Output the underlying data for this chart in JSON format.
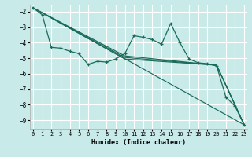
{
  "bg_color": "#c8eae8",
  "grid_color": "#ffffff",
  "line_color": "#1a6b5a",
  "xlabel": "Humidex (Indice chaleur)",
  "xlim": [
    -0.3,
    23.3
  ],
  "ylim": [
    -9.55,
    -1.55
  ],
  "yticks": [
    -9,
    -8,
    -7,
    -6,
    -5,
    -4,
    -3,
    -2
  ],
  "xticks": [
    0,
    1,
    2,
    3,
    4,
    5,
    6,
    7,
    8,
    9,
    10,
    11,
    12,
    13,
    14,
    15,
    16,
    17,
    18,
    19,
    20,
    21,
    22,
    23
  ],
  "main_x": [
    0,
    1,
    2,
    3,
    4,
    5,
    6,
    7,
    8,
    9,
    10,
    11,
    12,
    13,
    14,
    15,
    16,
    17,
    18,
    19,
    20,
    21,
    22,
    23
  ],
  "main_y": [
    -1.75,
    -2.2,
    -4.3,
    -4.35,
    -4.55,
    -4.7,
    -5.4,
    -5.2,
    -5.25,
    -5.05,
    -4.7,
    -3.55,
    -3.65,
    -3.8,
    -4.1,
    -2.75,
    -4.0,
    -5.05,
    -5.3,
    -5.35,
    -5.5,
    -7.5,
    -8.1,
    -9.3
  ],
  "line1_x": [
    0,
    23
  ],
  "line1_y": [
    -1.75,
    -9.3
  ],
  "line2_x": [
    0,
    10,
    20,
    23
  ],
  "line2_y": [
    -1.75,
    -4.85,
    -5.45,
    -9.3
  ],
  "line3_x": [
    0,
    10,
    20,
    23
  ],
  "line3_y": [
    -1.75,
    -4.95,
    -5.45,
    -9.3
  ],
  "line4_x": [
    0,
    10,
    20,
    23
  ],
  "line4_y": [
    -1.75,
    -5.05,
    -5.45,
    -9.3
  ]
}
